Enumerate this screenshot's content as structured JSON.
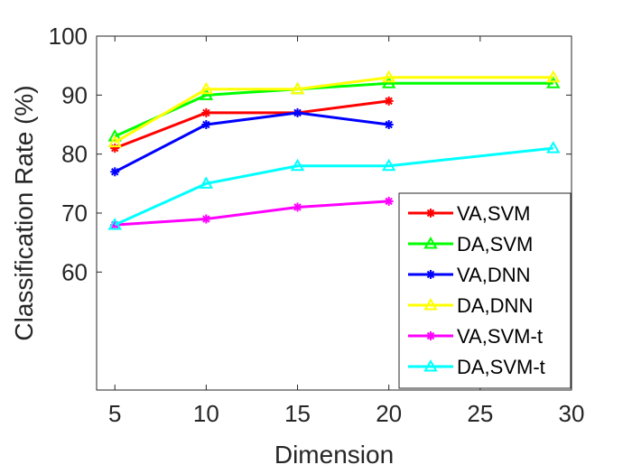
{
  "chart_data": {
    "type": "line",
    "title": "",
    "xlabel": "Dimension",
    "ylabel": "Classification Rate (%)",
    "xlim": [
      4,
      30
    ],
    "ylim": [
      40,
      100
    ],
    "xticks": [
      "5",
      "10",
      "15",
      "20",
      "25",
      "30"
    ],
    "xtick_values": [
      5,
      10,
      15,
      20,
      25,
      30
    ],
    "yticks": [
      "60",
      "70",
      "80",
      "90",
      "100"
    ],
    "ytick_values": [
      60,
      70,
      80,
      90,
      100
    ],
    "grid": false,
    "legend_position": "bottom-right",
    "series": [
      {
        "name": "VA,SVM",
        "color": "#ff0000",
        "marker": "star",
        "x": [
          5,
          10,
          15,
          20
        ],
        "values": [
          81,
          87,
          87,
          89
        ]
      },
      {
        "name": "DA,SVM",
        "color": "#00ff00",
        "marker": "triangle",
        "x": [
          5,
          10,
          15,
          20,
          29
        ],
        "values": [
          83,
          90,
          91,
          92,
          92
        ]
      },
      {
        "name": "VA,DNN",
        "color": "#0000ff",
        "marker": "star",
        "x": [
          5,
          10,
          15,
          20
        ],
        "values": [
          77,
          85,
          87,
          85
        ]
      },
      {
        "name": "DA,DNN",
        "color": "#ffff00",
        "marker": "triangle",
        "x": [
          5,
          10,
          15,
          20,
          29
        ],
        "values": [
          82,
          91,
          91,
          93,
          93
        ]
      },
      {
        "name": "VA,SVM-t",
        "color": "#ff00ff",
        "marker": "star",
        "x": [
          5,
          10,
          15,
          20
        ],
        "values": [
          68,
          69,
          71,
          72
        ]
      },
      {
        "name": "DA,SVM-t",
        "color": "#00ffff",
        "marker": "triangle",
        "x": [
          5,
          10,
          15,
          20,
          29
        ],
        "values": [
          68,
          75,
          78,
          78,
          81
        ]
      }
    ]
  }
}
